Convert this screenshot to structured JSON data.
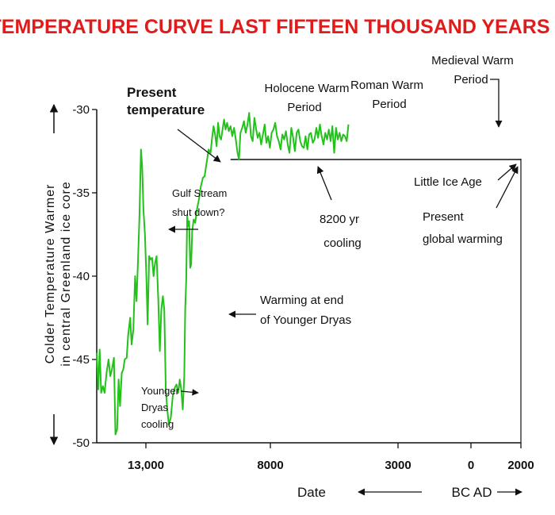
{
  "chart_data": {
    "type": "line",
    "title": "TEMPERATURE CURVE LAST FIFTEEN THOUSAND YEARS",
    "ylabel_line1": "Colder  Temperature  Warmer",
    "ylabel_line2": "in central Greenland ice core",
    "xlabel": "Date",
    "era_label": "BC AD",
    "ylim": [
      -50,
      -30
    ],
    "yticks": [
      {
        "value": -30,
        "label": "-30"
      },
      {
        "value": -35,
        "label": "-35"
      },
      {
        "value": -40,
        "label": "-40"
      },
      {
        "value": -45,
        "label": "-45"
      },
      {
        "value": -50,
        "label": "-50"
      }
    ],
    "xticks": [
      {
        "value": -13000,
        "label": "13,000"
      },
      {
        "value": -8000,
        "label": "8000"
      },
      {
        "value": -3000,
        "label": "3000"
      },
      {
        "value": 0,
        "label": "0"
      },
      {
        "value": 2000,
        "label": "2000"
      }
    ],
    "xlim": [
      -15000,
      2000
    ],
    "present_temperature": -33.0,
    "present_temperature_range": [
      -9600,
      2000
    ],
    "line_color": "#22c21a",
    "title_color": "#e01b1b",
    "series": [
      {
        "values": [
          [
            -15000,
            -44.6
          ],
          [
            -14940,
            -46.8
          ],
          [
            -14880,
            -44.4
          ],
          [
            -14820,
            -47.0
          ],
          [
            -14750,
            -46.6
          ],
          [
            -14680,
            -47.0
          ],
          [
            -14600,
            -45.8
          ],
          [
            -14520,
            -45.0
          ],
          [
            -14450,
            -46.0
          ],
          [
            -14380,
            -45.6
          ],
          [
            -14300,
            -44.9
          ],
          [
            -14240,
            -49.5
          ],
          [
            -14170,
            -49.2
          ],
          [
            -14110,
            -46.2
          ],
          [
            -14050,
            -47.8
          ],
          [
            -13980,
            -45.8
          ],
          [
            -13920,
            -45.6
          ],
          [
            -13860,
            -45.0
          ],
          [
            -13780,
            -44.9
          ],
          [
            -13720,
            -43.5
          ],
          [
            -13640,
            -42.5
          ],
          [
            -13580,
            -44.1
          ],
          [
            -13510,
            -43.2
          ],
          [
            -13440,
            -40.0
          ],
          [
            -13380,
            -41.5
          ],
          [
            -13320,
            -39.0
          ],
          [
            -13260,
            -36.4
          ],
          [
            -13200,
            -32.4
          ],
          [
            -13150,
            -33.4
          ],
          [
            -13100,
            -36.0
          ],
          [
            -13040,
            -37.5
          ],
          [
            -12980,
            -40.0
          ],
          [
            -12930,
            -42.9
          ],
          [
            -12870,
            -38.8
          ],
          [
            -12810,
            -39.0
          ],
          [
            -12750,
            -38.9
          ],
          [
            -12690,
            -40.0
          ],
          [
            -12630,
            -39.2
          ],
          [
            -12570,
            -38.8
          ],
          [
            -12500,
            -41.5
          ],
          [
            -12440,
            -44.5
          ],
          [
            -12380,
            -42.0
          ],
          [
            -12320,
            -41.2
          ],
          [
            -12260,
            -42.0
          ],
          [
            -12200,
            -46.8
          ],
          [
            -12140,
            -48.0
          ],
          [
            -12080,
            -48.9
          ],
          [
            -12000,
            -48.5
          ],
          [
            -11920,
            -47.2
          ],
          [
            -11840,
            -46.7
          ],
          [
            -11770,
            -46.5
          ],
          [
            -11700,
            -47.0
          ],
          [
            -11640,
            -46.2
          ],
          [
            -11580,
            -46.8
          ],
          [
            -11520,
            -48.0
          ],
          [
            -11460,
            -46.0
          ],
          [
            -11420,
            -42.0
          ],
          [
            -11380,
            -40.2
          ],
          [
            -11340,
            -36.4
          ],
          [
            -11300,
            -37.0
          ],
          [
            -11260,
            -36.7
          ],
          [
            -11220,
            -39.5
          ],
          [
            -11180,
            -39.3
          ],
          [
            -11140,
            -37.3
          ],
          [
            -11080,
            -36.6
          ],
          [
            -11020,
            -36.8
          ],
          [
            -10950,
            -36.0
          ],
          [
            -10870,
            -35.4
          ],
          [
            -10790,
            -34.6
          ],
          [
            -10710,
            -34.1
          ],
          [
            -10640,
            -34.0
          ],
          [
            -10560,
            -33.2
          ],
          [
            -10480,
            -32.4
          ],
          [
            -10400,
            -32.6
          ],
          [
            -10340,
            -31.7
          ],
          [
            -10280,
            -31.0
          ],
          [
            -10220,
            -31.5
          ],
          [
            -10160,
            -32.2
          ],
          [
            -10100,
            -30.8
          ],
          [
            -10040,
            -31.6
          ],
          [
            -9980,
            -31.8
          ],
          [
            -9920,
            -31.2
          ],
          [
            -9860,
            -30.6
          ],
          [
            -9800,
            -31.2
          ],
          [
            -9740,
            -30.8
          ],
          [
            -9670,
            -31.3
          ],
          [
            -9600,
            -31.0
          ],
          [
            -9530,
            -31.6
          ],
          [
            -9460,
            -31.1
          ],
          [
            -9390,
            -31.8
          ],
          [
            -9320,
            -32.6
          ],
          [
            -9260,
            -33.0
          ],
          [
            -9200,
            -31.4
          ],
          [
            -9130,
            -31.1
          ],
          [
            -9060,
            -30.7
          ],
          [
            -8990,
            -31.4
          ],
          [
            -8920,
            -30.9
          ],
          [
            -8850,
            -30.2
          ],
          [
            -8780,
            -31.6
          ],
          [
            -8710,
            -31.9
          ],
          [
            -8640,
            -30.5
          ],
          [
            -8580,
            -31.1
          ],
          [
            -8510,
            -31.7
          ],
          [
            -8440,
            -31.4
          ],
          [
            -8370,
            -32.1
          ],
          [
            -8300,
            -31.5
          ],
          [
            -8230,
            -30.9
          ],
          [
            -8160,
            -32.0
          ],
          [
            -8090,
            -31.6
          ],
          [
            -8020,
            -32.3
          ],
          [
            -7950,
            -31.4
          ],
          [
            -7880,
            -31.2
          ],
          [
            -7810,
            -30.8
          ],
          [
            -7740,
            -31.6
          ],
          [
            -7670,
            -31.9
          ],
          [
            -7600,
            -32.4
          ],
          [
            -7530,
            -31.5
          ],
          [
            -7460,
            -31.8
          ],
          [
            -7390,
            -31.3
          ],
          [
            -7320,
            -32.1
          ],
          [
            -7250,
            -32.6
          ],
          [
            -7180,
            -31.1
          ],
          [
            -7110,
            -31.7
          ],
          [
            -7040,
            -32.5
          ],
          [
            -6970,
            -31.4
          ],
          [
            -6900,
            -31.2
          ],
          [
            -6830,
            -31.9
          ],
          [
            -6760,
            -32.2
          ],
          [
            -6690,
            -32.3
          ],
          [
            -6620,
            -31.6
          ],
          [
            -6550,
            -32.4
          ],
          [
            -6480,
            -31.5
          ],
          [
            -6410,
            -31.4
          ],
          [
            -6340,
            -32.0
          ],
          [
            -6270,
            -31.8
          ],
          [
            -6200,
            -31.1
          ],
          [
            -6130,
            -31.7
          ],
          [
            -6060,
            -30.9
          ],
          [
            -5990,
            -31.6
          ],
          [
            -5920,
            -32.1
          ],
          [
            -5850,
            -31.4
          ],
          [
            -5780,
            -31.8
          ],
          [
            -5710,
            -31.2
          ],
          [
            -5640,
            -31.9
          ],
          [
            -5570,
            -31.0
          ],
          [
            -5500,
            -32.6
          ],
          [
            -5430,
            -31.1
          ],
          [
            -5360,
            -31.8
          ],
          [
            -5290,
            -31.4
          ],
          [
            -5220,
            -31.9
          ],
          [
            -5150,
            -31.5
          ],
          [
            -5080,
            -31.6
          ],
          [
            -5010,
            -31.9
          ],
          [
            -4940,
            -30.9
          ]
        ]
      }
    ],
    "annotations": {
      "present_temp_line1": "Present",
      "present_temp_line2": "temperature",
      "gulf_line1": "Gulf Stream",
      "gulf_line2": "shut down?",
      "younger_line1": "Younger",
      "younger_line2": "Dryas",
      "younger_line3": "cooling",
      "warming_line1": "Warming at end",
      "warming_line2": "of Younger Dryas",
      "holocene_line1": "Holocene Warm",
      "holocene_line2": "Period",
      "roman_line1": "Roman Warm",
      "roman_line2": "Period",
      "medieval_line1": "Medieval Warm",
      "medieval_line2": "Period",
      "cooling_line1": "8200 yr",
      "cooling_line2": "cooling",
      "lia": "Little Ice Age",
      "gw_line1": "Present",
      "gw_line2": "global warming"
    }
  }
}
